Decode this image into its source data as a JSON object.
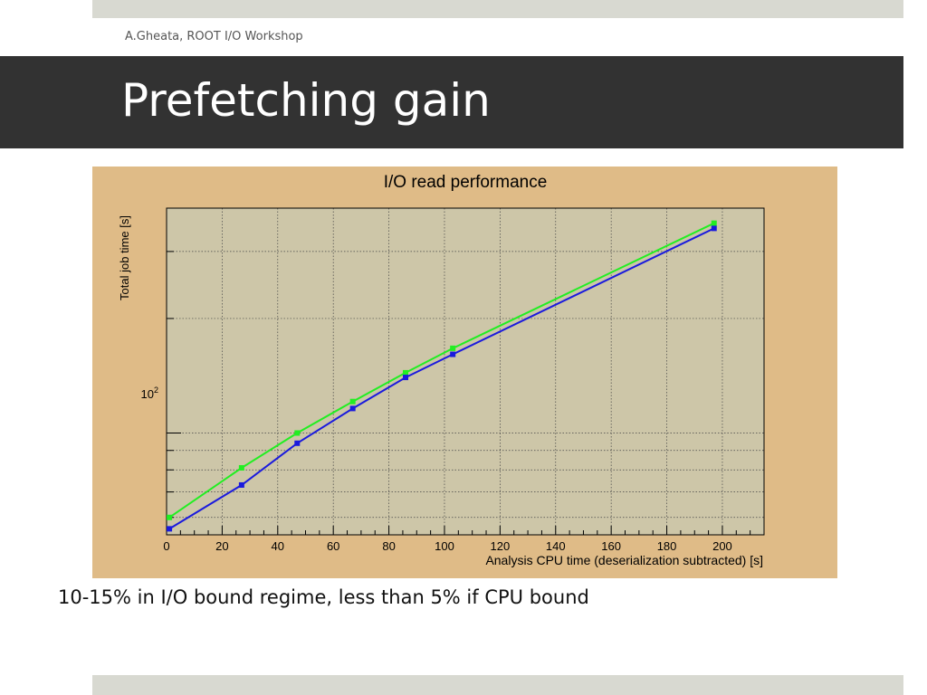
{
  "slide": {
    "author": "A.Gheata, ROOT I/O Workshop",
    "title": "Prefetching gain",
    "caption": "10-15% in I/O bound regime, less than 5% if CPU bound"
  },
  "colors": {
    "title_bar": "#323232",
    "chart_background": "#dfbb87",
    "plot_area": "#cdc6a8",
    "series_green": "#22ee22",
    "series_blue": "#1a1add"
  },
  "chart_data": {
    "type": "line",
    "title": "I/O read performance",
    "xlabel": "Analysis CPU time (deserialization subtracted) [s]",
    "ylabel": "Total job time [s]",
    "xlim": [
      0,
      215
    ],
    "ylim": [
      54,
      390
    ],
    "y_scale": "log",
    "grid": true,
    "x_ticks": [
      0,
      20,
      40,
      60,
      80,
      100,
      120,
      140,
      160,
      180,
      200
    ],
    "y_tick_label": {
      "base": "10",
      "exponent": "2",
      "value": 100
    },
    "y_unlabeled_ticks": [
      60,
      70,
      80,
      90,
      200,
      300
    ],
    "series": [
      {
        "color": "#22ee22",
        "points": [
          [
            1,
            60
          ],
          [
            27,
            81
          ],
          [
            47,
            100
          ],
          [
            67,
            121
          ],
          [
            86,
            144
          ],
          [
            103,
            167
          ],
          [
            197,
            356
          ]
        ]
      },
      {
        "color": "#1a1add",
        "points": [
          [
            1,
            56
          ],
          [
            27,
            73
          ],
          [
            47,
            94
          ],
          [
            67,
            116
          ],
          [
            86,
            140
          ],
          [
            103,
            161
          ],
          [
            197,
            345
          ]
        ]
      }
    ]
  }
}
